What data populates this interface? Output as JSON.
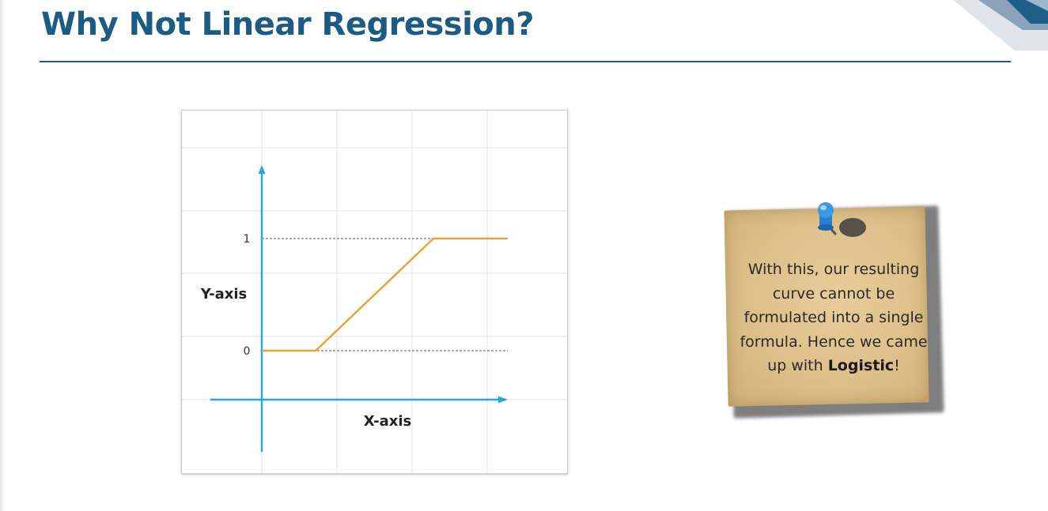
{
  "slide": {
    "title": "Why Not Linear Regression?"
  },
  "chart_data": {
    "type": "line",
    "title": "",
    "xlabel": "X-axis",
    "ylabel": "Y-axis",
    "y_ticks": [
      "0",
      "1"
    ],
    "grid": true,
    "series": [
      {
        "x": [
          0,
          1.1,
          3.5,
          5
        ],
        "y": [
          0,
          0,
          1,
          1
        ]
      }
    ],
    "reference_lines": [
      0,
      1
    ],
    "xlim": [
      0,
      5
    ],
    "ylim": [
      0,
      1
    ],
    "colors": {
      "line": "#e8a33a",
      "axes": "#29a8e0",
      "grid": "#e3e3e3"
    }
  },
  "note": {
    "text_before": "With this, our resulting curve cannot be formulated into a single formula. Hence we came up with ",
    "bold_word": "Logistic",
    "text_after": "!"
  }
}
